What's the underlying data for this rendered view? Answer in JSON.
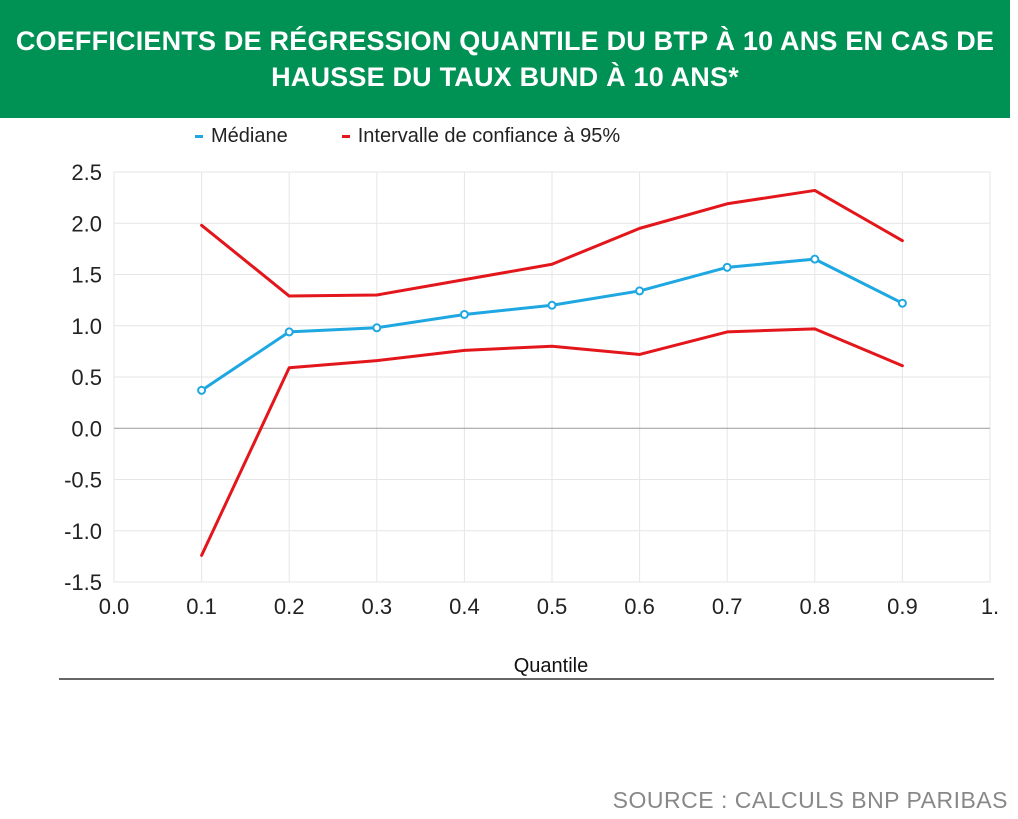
{
  "header": {
    "title_line1": "COEFFICIENTS DE RÉGRESSION QUANTILE DU BTP À 10 ANS EN CAS DE",
    "title_line2": "HAUSSE DU TAUX BUND À 10 ANS*"
  },
  "colors": {
    "header_bg": "#009154",
    "median": "#1ea7e1",
    "confidence": "#e3161c"
  },
  "source": "SOURCE : CALCULS BNP PARIBAS",
  "chart_data": {
    "type": "line",
    "xlabel": "Quantile",
    "ylabel": "",
    "xlim": [
      0.0,
      1.0
    ],
    "ylim": [
      -1.5,
      2.5
    ],
    "x_ticks": [
      "0.0",
      "0.1",
      "0.2",
      "0.3",
      "0.4",
      "0.5",
      "0.6",
      "0.7",
      "0.8",
      "0.9",
      "1."
    ],
    "y_ticks": [
      "2.5",
      "2.0",
      "1.5",
      "1.0",
      "0.5",
      "0.0",
      "-0.5",
      "-1.0",
      "-1.5"
    ],
    "x": [
      0.1,
      0.2,
      0.3,
      0.4,
      0.5,
      0.6,
      0.7,
      0.8,
      0.9
    ],
    "grid": true,
    "legend_position": "top",
    "series": [
      {
        "name": "Médiane",
        "color": "#1ea7e1",
        "markers": true,
        "values": [
          0.37,
          0.94,
          0.98,
          1.11,
          1.2,
          1.34,
          1.57,
          1.65,
          1.22
        ]
      },
      {
        "name": "Intervalle de confiance à 95%",
        "color": "#e3161c",
        "markers": false,
        "values": [
          1.98,
          1.29,
          1.3,
          1.45,
          1.6,
          1.95,
          2.19,
          2.32,
          1.83
        ]
      },
      {
        "name": "",
        "color": "#e3161c",
        "markers": false,
        "values": [
          -1.24,
          0.59,
          0.66,
          0.76,
          0.8,
          0.72,
          0.94,
          0.97,
          0.61
        ]
      }
    ]
  }
}
